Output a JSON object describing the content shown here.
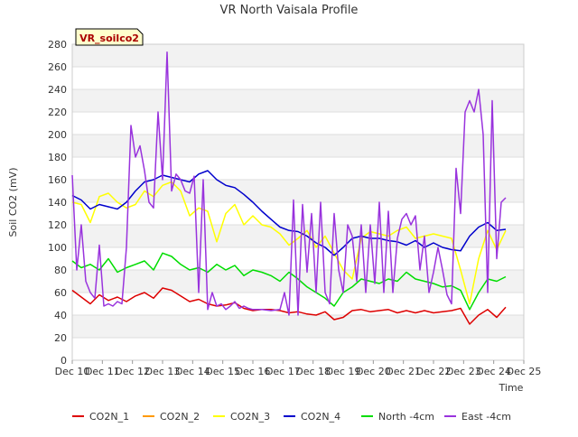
{
  "chart_data": {
    "type": "line",
    "title": "VR North Vaisala Profile",
    "station_label": "VR_soilco2",
    "xlabel": "Time",
    "ylabel": "Soil CO2 (mV)",
    "x_ticks": [
      "Dec 10",
      "Dec 11",
      "Dec 12",
      "Dec 13",
      "Dec 14",
      "Dec 15",
      "Dec 16",
      "Dec 17",
      "Dec 18",
      "Dec 19",
      "Dec 20",
      "Dec 21",
      "Dec 22",
      "Dec 23",
      "Dec 24",
      "Dec 25"
    ],
    "xlim": [
      "Dec 10",
      "Dec 25"
    ],
    "ylim": [
      0,
      280
    ],
    "y_ticks": [
      0,
      20,
      40,
      60,
      80,
      100,
      120,
      140,
      160,
      180,
      200,
      220,
      240,
      260,
      280
    ],
    "grid": true,
    "legend_position": "bottom",
    "series": [
      {
        "name": "CO2N_1",
        "color": "#dd0000",
        "x": [
          10.0,
          10.3,
          10.6,
          10.9,
          11.2,
          11.5,
          11.8,
          12.1,
          12.4,
          12.7,
          13.0,
          13.3,
          13.6,
          13.9,
          14.2,
          14.5,
          14.8,
          15.1,
          15.4,
          15.7,
          16.0,
          16.3,
          16.6,
          16.9,
          17.2,
          17.5,
          17.8,
          18.1,
          18.4,
          18.7,
          19.0,
          19.3,
          19.6,
          19.9,
          20.2,
          20.5,
          20.8,
          21.1,
          21.4,
          21.7,
          22.0,
          22.3,
          22.6,
          22.9,
          23.2,
          23.5,
          23.8,
          24.1,
          24.4
        ],
        "y": [
          62,
          56,
          50,
          58,
          53,
          56,
          52,
          57,
          60,
          55,
          64,
          62,
          57,
          52,
          54,
          50,
          48,
          49,
          51,
          46,
          44,
          45,
          45,
          44,
          42,
          43,
          41,
          40,
          43,
          36,
          38,
          44,
          45,
          43,
          44,
          45,
          42,
          44,
          42,
          44,
          42,
          43,
          44,
          46,
          32,
          40,
          45,
          38,
          47
        ]
      },
      {
        "name": "CO2N_2",
        "color": "#ff9900",
        "x": [],
        "y": []
      },
      {
        "name": "CO2N_3",
        "color": "#ffff00",
        "x": [
          10.0,
          10.3,
          10.6,
          10.9,
          11.2,
          11.5,
          11.8,
          12.1,
          12.4,
          12.7,
          13.0,
          13.3,
          13.6,
          13.9,
          14.2,
          14.5,
          14.8,
          15.1,
          15.4,
          15.7,
          16.0,
          16.3,
          16.6,
          16.9,
          17.2,
          17.5,
          17.8,
          18.1,
          18.4,
          18.7,
          19.0,
          19.3,
          19.6,
          19.9,
          20.2,
          20.5,
          20.8,
          21.1,
          21.4,
          21.7,
          22.0,
          22.3,
          22.6,
          22.9,
          23.2,
          23.5,
          23.8,
          24.1,
          24.4
        ],
        "y": [
          140,
          138,
          122,
          145,
          148,
          140,
          135,
          138,
          150,
          145,
          155,
          158,
          150,
          128,
          135,
          132,
          105,
          130,
          138,
          120,
          128,
          120,
          118,
          112,
          102,
          108,
          115,
          100,
          110,
          95,
          80,
          72,
          108,
          114,
          112,
          110,
          115,
          118,
          108,
          110,
          112,
          110,
          108,
          80,
          50,
          90,
          115,
          98,
          115
        ]
      },
      {
        "name": "CO2N_4",
        "color": "#0000cc",
        "x": [
          10.0,
          10.3,
          10.6,
          10.9,
          11.2,
          11.5,
          11.8,
          12.1,
          12.4,
          12.7,
          13.0,
          13.3,
          13.6,
          13.9,
          14.2,
          14.5,
          14.8,
          15.1,
          15.4,
          15.7,
          16.0,
          16.3,
          16.6,
          16.9,
          17.2,
          17.5,
          17.8,
          18.1,
          18.4,
          18.7,
          19.0,
          19.3,
          19.6,
          19.9,
          20.2,
          20.5,
          20.8,
          21.1,
          21.4,
          21.7,
          22.0,
          22.3,
          22.6,
          22.9,
          23.2,
          23.5,
          23.8,
          24.1,
          24.4
        ],
        "y": [
          146,
          142,
          134,
          138,
          136,
          134,
          140,
          150,
          158,
          160,
          164,
          162,
          160,
          158,
          165,
          168,
          160,
          155,
          153,
          147,
          140,
          132,
          125,
          118,
          115,
          114,
          110,
          104,
          100,
          93,
          100,
          108,
          110,
          108,
          108,
          106,
          105,
          102,
          106,
          100,
          104,
          100,
          98,
          97,
          110,
          118,
          122,
          115,
          116
        ]
      },
      {
        "name": "North -4cm",
        "color": "#00dd00",
        "x": [
          10.0,
          10.3,
          10.6,
          10.9,
          11.2,
          11.5,
          11.8,
          12.1,
          12.4,
          12.7,
          13.0,
          13.3,
          13.6,
          13.9,
          14.2,
          14.5,
          14.8,
          15.1,
          15.4,
          15.7,
          16.0,
          16.3,
          16.6,
          16.9,
          17.2,
          17.5,
          17.8,
          18.1,
          18.4,
          18.7,
          19.0,
          19.3,
          19.6,
          19.9,
          20.2,
          20.5,
          20.8,
          21.1,
          21.4,
          21.7,
          22.0,
          22.3,
          22.6,
          22.9,
          23.2,
          23.5,
          23.8,
          24.1,
          24.4
        ],
        "y": [
          88,
          82,
          85,
          80,
          90,
          78,
          82,
          85,
          88,
          80,
          95,
          92,
          85,
          80,
          82,
          78,
          85,
          80,
          84,
          75,
          80,
          78,
          75,
          70,
          78,
          72,
          65,
          60,
          55,
          48,
          60,
          65,
          72,
          70,
          68,
          72,
          70,
          78,
          72,
          70,
          68,
          65,
          66,
          62,
          45,
          60,
          72,
          70,
          74
        ]
      },
      {
        "name": "East -4cm",
        "color": "#9933dd",
        "x": [
          10.0,
          10.15,
          10.3,
          10.45,
          10.6,
          10.75,
          10.9,
          11.05,
          11.2,
          11.35,
          11.5,
          11.65,
          11.8,
          11.95,
          12.1,
          12.25,
          12.4,
          12.55,
          12.7,
          12.85,
          13.0,
          13.15,
          13.3,
          13.45,
          13.6,
          13.75,
          13.9,
          14.05,
          14.2,
          14.35,
          14.5,
          14.65,
          14.8,
          14.95,
          15.1,
          15.25,
          15.4,
          15.55,
          15.7,
          15.85,
          16.0,
          16.3,
          16.6,
          16.9,
          17.05,
          17.2,
          17.35,
          17.5,
          17.65,
          17.8,
          17.95,
          18.1,
          18.25,
          18.4,
          18.55,
          18.7,
          18.85,
          19.0,
          19.15,
          19.3,
          19.45,
          19.6,
          19.75,
          19.9,
          20.05,
          20.2,
          20.35,
          20.5,
          20.65,
          20.8,
          20.95,
          21.1,
          21.25,
          21.4,
          21.55,
          21.7,
          21.85,
          22.0,
          22.15,
          22.3,
          22.45,
          22.6,
          22.75,
          22.9,
          23.05,
          23.2,
          23.35,
          23.5,
          23.65,
          23.8,
          23.95,
          24.1,
          24.25,
          24.4
        ],
        "y": [
          164,
          80,
          120,
          70,
          60,
          55,
          102,
          48,
          50,
          48,
          52,
          50,
          100,
          208,
          180,
          190,
          168,
          140,
          135,
          220,
          160,
          273,
          150,
          165,
          160,
          150,
          148,
          163,
          60,
          160,
          45,
          60,
          48,
          50,
          45,
          48,
          52,
          46,
          48,
          46,
          45,
          45,
          44,
          45,
          60,
          40,
          142,
          40,
          138,
          78,
          130,
          60,
          140,
          60,
          50,
          130,
          80,
          60,
          120,
          110,
          70,
          120,
          60,
          120,
          68,
          140,
          60,
          132,
          60,
          108,
          125,
          130,
          120,
          128,
          80,
          110,
          60,
          78,
          100,
          80,
          58,
          50,
          170,
          130,
          220,
          230,
          220,
          240,
          200,
          60,
          230,
          90,
          140,
          144
        ]
      }
    ]
  }
}
